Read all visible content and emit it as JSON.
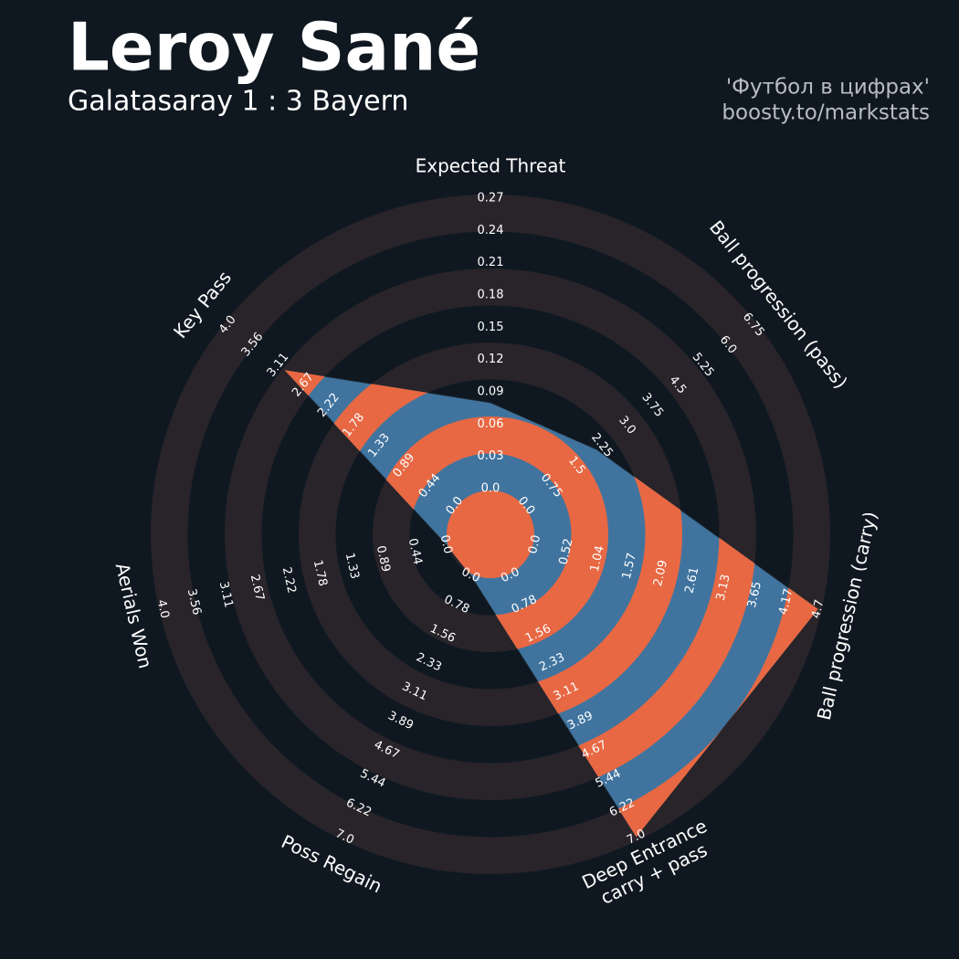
{
  "chart_data": {
    "type": "radar",
    "title": "Leroy Sané",
    "subtitle": "Galatasaray 1 : 3 Bayern",
    "credits": [
      "'Футбол в цифрах'",
      "boosty.to/markstats"
    ],
    "color": "#40749f",
    "ring_color": "#e76843",
    "params": [
      {
        "name": [
          "Expected Threat"
        ],
        "lim": [
          0,
          0.27
        ],
        "value": 0.08,
        "ticks": [
          {
            "value": 0,
            "label": "0.0"
          },
          0.03,
          0.06,
          0.09,
          0.12,
          0.15,
          0.18,
          0.21,
          0.24,
          0.27
        ]
      },
      {
        "name": [
          "Ball progression (pass)"
        ],
        "lim": [
          0,
          6.75
        ],
        "value": 2.1,
        "ticks": [
          {
            "value": 0,
            "label": "0.0"
          },
          0.75,
          1.5,
          2.25,
          {
            "value": 3,
            "label": "3.0"
          },
          3.75,
          4.5,
          5.25,
          {
            "value": 6,
            "label": "6.0"
          },
          6.75
        ]
      },
      {
        "name": [
          "Ball progression (carry)"
        ],
        "lim": [
          0,
          4.7
        ],
        "value": 4.7,
        "ticks": [
          {
            "value": 0,
            "label": "0.0"
          },
          0.52,
          1.04,
          1.57,
          2.09,
          2.61,
          3.13,
          3.65,
          4.17,
          4.7
        ]
      },
      {
        "name": [
          "Deep Entrance",
          "carry + pass"
        ],
        "lim": [
          0,
          7
        ],
        "value": 7,
        "ticks": [
          {
            "value": 0,
            "label": "0.0"
          },
          0.78,
          1.56,
          2.33,
          3.11,
          3.89,
          4.67,
          5.44,
          6.22,
          {
            "value": 7,
            "label": "7.0"
          }
        ]
      },
      {
        "name": [
          "Poss Regain"
        ],
        "lim": [
          0,
          7
        ],
        "value": 0,
        "ticks": [
          {
            "value": 0,
            "label": "0.0"
          },
          0.78,
          1.56,
          2.33,
          3.11,
          3.89,
          4.67,
          5.44,
          6.22,
          {
            "value": 7,
            "label": "7.0"
          }
        ]
      },
      {
        "name": [
          "Aerials Won"
        ],
        "lim": [
          0,
          4
        ],
        "value": 0,
        "ticks": [
          {
            "value": 0,
            "label": "0.0"
          },
          0.44,
          0.89,
          1.33,
          1.78,
          2.22,
          2.67,
          3.11,
          3.56,
          {
            "value": 4,
            "label": "4.0"
          }
        ]
      },
      {
        "name": [
          "Key Pass"
        ],
        "lim": [
          0,
          4
        ],
        "value": 3.0,
        "ticks": [
          {
            "value": 0,
            "label": "0.0"
          },
          0.44,
          0.89,
          1.33,
          1.78,
          2.22,
          2.67,
          3.11,
          3.56,
          {
            "value": 4,
            "label": "4.0"
          }
        ]
      }
    ]
  }
}
